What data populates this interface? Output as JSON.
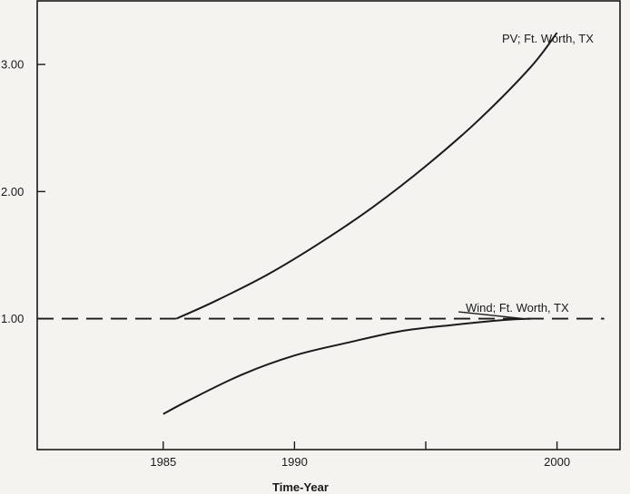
{
  "chart_data": {
    "type": "line",
    "title": "",
    "xlabel": "Time-Year",
    "ylabel": "",
    "xlim": [
      1980.2,
      2002.4
    ],
    "ylim": [
      -0.03,
      3.5
    ],
    "x_ticks": [
      1985,
      1990,
      1995,
      2000
    ],
    "x_tick_labels": [
      "1985",
      "1990",
      "",
      "2000"
    ],
    "y_ticks": [
      1.0,
      2.0,
      3.0
    ],
    "y_tick_labels": [
      "1.00",
      "2.00",
      "3.00"
    ],
    "grid": false,
    "legend": "none",
    "series": [
      {
        "name": "PV; Ft. Worth, TX",
        "style": "solid",
        "color": "#1a1a1a",
        "x": [
          1985.5,
          1987,
          1989,
          1991,
          1993,
          1995,
          1997,
          1999,
          2000
        ],
        "y": [
          1.0,
          1.14,
          1.35,
          1.6,
          1.88,
          2.2,
          2.56,
          2.98,
          3.25
        ]
      },
      {
        "name": "Wind; Ft. Worth, TX",
        "style": "solid",
        "color": "#1a1a1a",
        "x": [
          1985,
          1986,
          1988,
          1990,
          1992,
          1994,
          1996,
          1998,
          1999
        ],
        "y": [
          0.25,
          0.36,
          0.56,
          0.71,
          0.81,
          0.9,
          0.95,
          0.99,
          1.0
        ]
      },
      {
        "name": "",
        "style": "dashed",
        "color": "#1a1a1a",
        "x": [
          1980.2,
          2001.8
        ],
        "y": [
          1.0,
          1.0
        ]
      }
    ]
  }
}
